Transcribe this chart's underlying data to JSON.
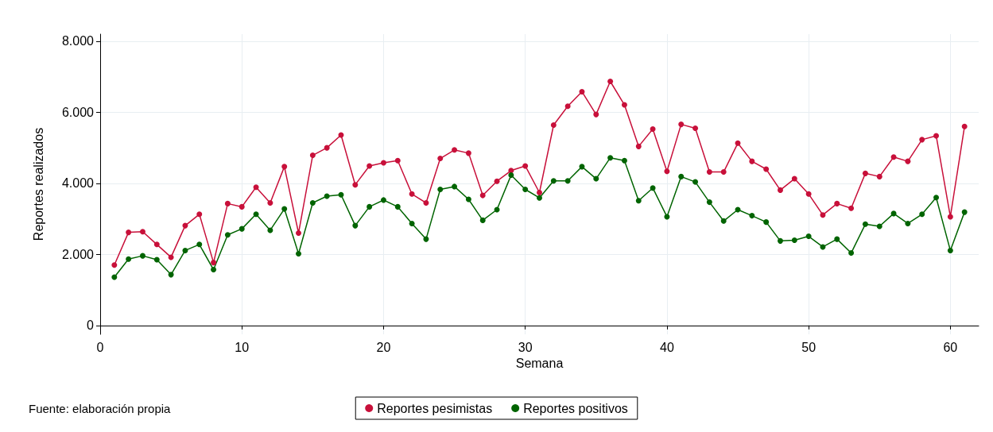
{
  "chart_data": {
    "type": "line",
    "xlabel": "Semana",
    "ylabel": "Reportes realizados",
    "annotations": [
      "Fuente: elaboración propia"
    ],
    "x": [
      1,
      2,
      3,
      4,
      5,
      6,
      7,
      8,
      9,
      10,
      11,
      12,
      13,
      14,
      15,
      16,
      17,
      18,
      19,
      20,
      21,
      22,
      23,
      24,
      25,
      26,
      27,
      28,
      29,
      30,
      31,
      32,
      33,
      34,
      35,
      36,
      37,
      38,
      39,
      40,
      41,
      42,
      43,
      44,
      45,
      46,
      47,
      48,
      49,
      50,
      51,
      52,
      53,
      54,
      55,
      56,
      57,
      58,
      59,
      60,
      61
    ],
    "xlim": [
      0,
      62
    ],
    "xticks": [
      0,
      10,
      20,
      30,
      40,
      50,
      60
    ],
    "ylim": [
      -250,
      8200
    ],
    "yticks": [
      {
        "value": 0,
        "label": "0"
      },
      {
        "value": 2000,
        "label": "2.000"
      },
      {
        "value": 4000,
        "label": "4.000"
      },
      {
        "value": 6000,
        "label": "6.000"
      },
      {
        "value": 8000,
        "label": "8.000"
      }
    ],
    "grid": true,
    "legend": "bottom",
    "marker": "circle",
    "line_style": "solid",
    "series": [
      {
        "name": "Reportes pesimistas",
        "color": "#c8103a",
        "values": [
          1700,
          2620,
          2640,
          2280,
          1920,
          2810,
          3130,
          1770,
          3430,
          3340,
          3890,
          3450,
          4470,
          2600,
          4790,
          5000,
          5360,
          3960,
          4490,
          4580,
          4640,
          3700,
          3450,
          4700,
          4940,
          4850,
          3660,
          4060,
          4360,
          4490,
          3740,
          5640,
          6170,
          6580,
          5940,
          6870,
          6210,
          5040,
          5530,
          4340,
          5660,
          5550,
          4320,
          4320,
          5130,
          4620,
          4400,
          3810,
          4130,
          3700,
          3110,
          3430,
          3300,
          4280,
          4190,
          4740,
          4620,
          5230,
          5340,
          3060,
          5600
        ]
      },
      {
        "name": "Reportes positivos",
        "color": "#006400",
        "values": [
          1360,
          1870,
          1960,
          1850,
          1430,
          2110,
          2280,
          1570,
          2550,
          2720,
          3130,
          2680,
          3280,
          2020,
          3450,
          3640,
          3680,
          2810,
          3340,
          3530,
          3340,
          2870,
          2430,
          3830,
          3910,
          3550,
          2960,
          3260,
          4230,
          3830,
          3590,
          4070,
          4070,
          4470,
          4130,
          4720,
          4640,
          3510,
          3870,
          3060,
          4190,
          4040,
          3470,
          2940,
          3260,
          3090,
          2910,
          2380,
          2400,
          2510,
          2210,
          2430,
          2040,
          2850,
          2790,
          3150,
          2870,
          3130,
          3600,
          2110,
          3190
        ]
      }
    ]
  }
}
